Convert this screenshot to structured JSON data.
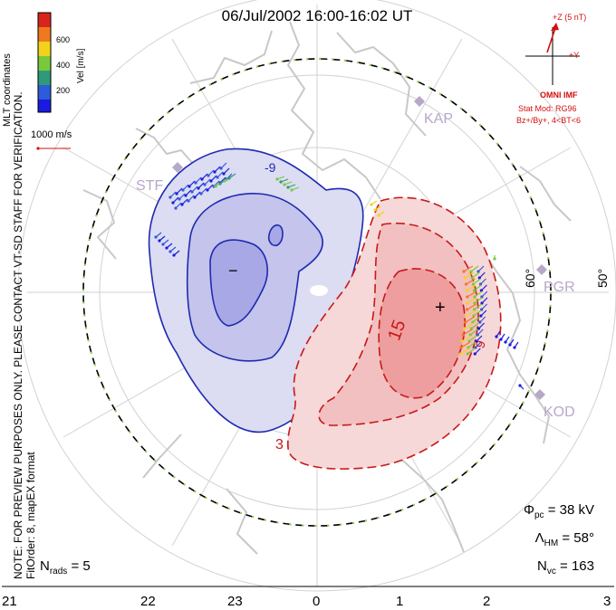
{
  "header": {
    "title": "06/Jul/2002 16:00-16:02 UT"
  },
  "side_notes": {
    "preview": "NOTE: FOR PREVIEW PURPOSES ONLY. PLEASE CONTACT VT-SD STAFF FOR VERIFICATION.",
    "fit": "FitOrder: 8, mapEX format",
    "coords": "MLT coordinates"
  },
  "legend": {
    "unit_label": "Vel [m/s]",
    "ticks": [
      "600",
      "400",
      "200"
    ],
    "colors": [
      "#d8241c",
      "#ef7a1e",
      "#f4d21b",
      "#7ac93c",
      "#2f9a7a",
      "#2c5cd8",
      "#1a1ae0"
    ],
    "ref_vector_label": "1000 m/s"
  },
  "imf": {
    "clock_label_z": "+Z (5 nT)",
    "clock_label_y": "+Y",
    "source": "OMNI IMF",
    "model": "Stat Mod: RG96",
    "condition": "Bz+/By+, 4<BT<6"
  },
  "stations": [
    "KAP",
    "STF",
    "PGR",
    "KOD"
  ],
  "latitude_labels": [
    "60°",
    "50°"
  ],
  "contours": {
    "dusk_center": "−",
    "dawn_center": "+",
    "dusk_label": "-9",
    "dawn_label_inner": "15",
    "dawn_label_mid": "9",
    "dawn_label_outer": "3"
  },
  "stats": {
    "phi_sym": "Φ",
    "phi_sub": "pc",
    "phi_value": "= 38 kV",
    "lambda_sym": "Λ",
    "lambda_sub": "HM",
    "lambda_value": "= 58°",
    "nvc_sym": "N",
    "nvc_sub": "vc",
    "nvc_value": "= 163",
    "nrads_sym": "N",
    "nrads_sub": "rads",
    "nrads_value": "= 5"
  },
  "mlt_axis": [
    "21",
    "22",
    "23",
    "0",
    "1",
    "2",
    "3"
  ],
  "colors": {
    "dusk_fill": "#dcdcf2",
    "dusk_fill_inner": "#c4c4ec",
    "dusk_fill_core": "#a8a8e6",
    "dusk_line": "#1f2ab0",
    "dawn_fill": "#f6d8d8",
    "dawn_fill_inner": "#f2c0c0",
    "dawn_fill_core": "#ee9e9e",
    "dawn_line": "#c81818",
    "coast": "#c8c8c8",
    "grid": "#d2d2d2",
    "hmb": "#000000",
    "station": "#b8a8c8"
  }
}
